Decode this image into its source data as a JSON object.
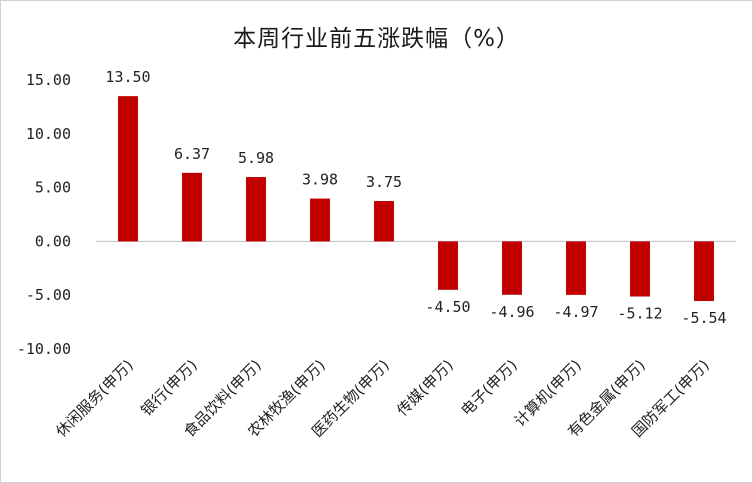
{
  "chart_data": {
    "type": "bar",
    "title": "本周行业前五涨跌幅（%）",
    "categories": [
      "休闲服务(申万)",
      "银行(申万)",
      "食品饮料(申万)",
      "农林牧渔(申万)",
      "医药生物(申万)",
      "传媒(申万)",
      "电子(申万)",
      "计算机(申万)",
      "有色金属(申万)",
      "国防军工(申万)"
    ],
    "values": [
      13.5,
      6.37,
      5.98,
      3.98,
      3.75,
      -4.5,
      -4.96,
      -4.97,
      -5.12,
      -5.54
    ],
    "data_labels": [
      "13.50",
      "6.37",
      "5.98",
      "3.98",
      "3.75",
      "-4.50",
      "-4.96",
      "-4.97",
      "-5.12",
      "-5.54"
    ],
    "y_ticks": [
      15,
      10,
      5,
      0,
      -5,
      -10
    ],
    "y_tick_labels": [
      "15.00",
      "10.00",
      "5.00",
      "0.00",
      "-5.00",
      "-10.00"
    ],
    "ylim": [
      -10,
      15
    ],
    "xlabel": "",
    "ylabel": "",
    "grid": false,
    "legend": "none",
    "bar_color": "#c00000",
    "axis_color": "#bfbfbf"
  }
}
